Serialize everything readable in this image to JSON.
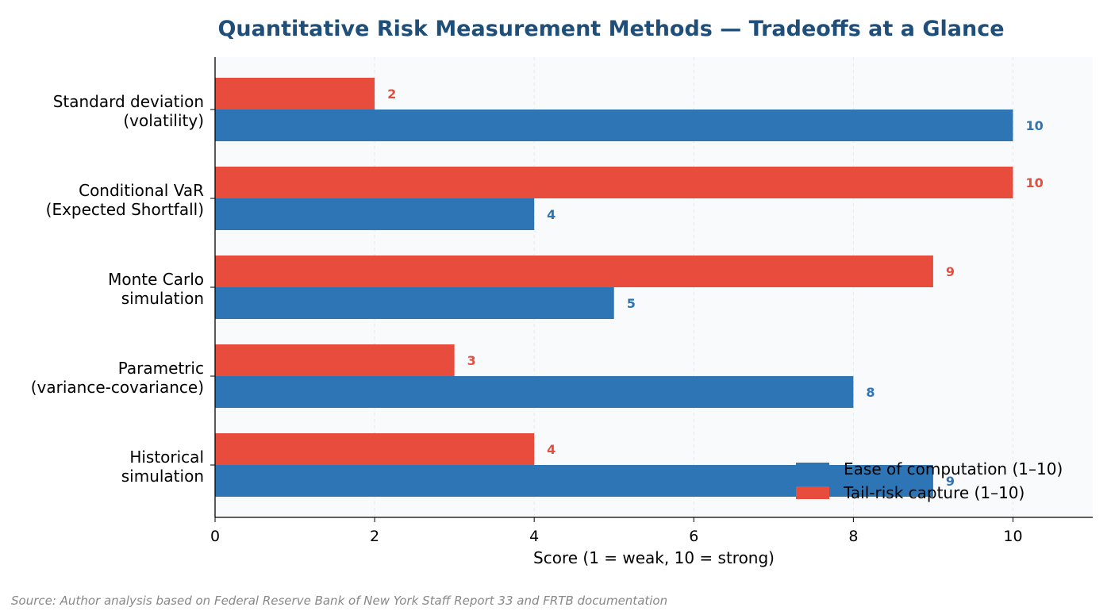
{
  "chart_data": {
    "type": "bar",
    "orientation": "horizontal",
    "title": "Quantitative Risk Measurement Methods — Tradeoffs at a Glance",
    "xlabel": "Score (1 = weak, 10 = strong)",
    "ylabel": "",
    "xlim": [
      0,
      11
    ],
    "xticks": [
      0,
      2,
      4,
      6,
      8,
      10
    ],
    "grid": true,
    "legend_position": "bottom-right",
    "categories": [
      [
        "Standard deviation",
        "(volatility)"
      ],
      [
        "Conditional VaR",
        "(Expected Shortfall)"
      ],
      [
        "Monte Carlo",
        "simulation"
      ],
      [
        "Parametric",
        "(variance-covariance)"
      ],
      [
        "Historical",
        "simulation"
      ]
    ],
    "series": [
      {
        "name": "Ease of computation (1–10)",
        "color": "#2e75b6",
        "values": [
          10,
          4,
          5,
          8,
          9
        ]
      },
      {
        "name": "Tail-risk capture (1–10)",
        "color": "#e84c3d",
        "values": [
          2,
          10,
          9,
          3,
          4
        ]
      }
    ]
  },
  "colors": {
    "title": "#1f4e79",
    "plot_background": "#f8fafc",
    "gridline": "#e5e9ef",
    "source_text": "#888888"
  },
  "source_note": "Source: Author analysis based on Federal Reserve Bank of New York Staff Report 33 and FRTB documentation"
}
